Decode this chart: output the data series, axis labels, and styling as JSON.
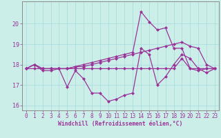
{
  "title": "",
  "xlabel": "Windchill (Refroidissement éolien,°C)",
  "ylabel": "",
  "bg_color": "#cceee8",
  "grid_color": "#aadddd",
  "line_color": "#993399",
  "spine_color": "#888888",
  "xlim": [
    -0.5,
    23.5
  ],
  "ylim": [
    15.75,
    21.1
  ],
  "xticks": [
    0,
    1,
    2,
    3,
    4,
    5,
    6,
    7,
    8,
    9,
    10,
    11,
    12,
    13,
    14,
    15,
    16,
    17,
    18,
    19,
    20,
    21,
    22,
    23
  ],
  "yticks": [
    16,
    17,
    18,
    19,
    20
  ],
  "series": [
    [
      17.8,
      18.0,
      17.7,
      17.7,
      17.8,
      16.9,
      17.7,
      17.3,
      16.6,
      16.6,
      16.2,
      16.3,
      16.5,
      16.6,
      18.8,
      18.5,
      17.0,
      17.4,
      18.0,
      18.5,
      18.3,
      17.8,
      17.6,
      17.8
    ],
    [
      17.8,
      18.0,
      17.8,
      17.8,
      17.8,
      17.8,
      17.9,
      17.9,
      18.0,
      18.1,
      18.2,
      18.3,
      18.4,
      18.5,
      18.6,
      18.7,
      18.8,
      18.9,
      19.0,
      19.1,
      18.9,
      18.8,
      18.0,
      17.8
    ],
    [
      17.8,
      17.8,
      17.8,
      17.8,
      17.8,
      17.8,
      17.8,
      17.8,
      17.8,
      17.8,
      17.8,
      17.8,
      17.8,
      17.8,
      17.8,
      17.8,
      17.8,
      17.8,
      17.8,
      18.3,
      17.8,
      17.8,
      17.8,
      17.8
    ],
    [
      17.8,
      18.0,
      17.8,
      17.8,
      17.8,
      17.8,
      17.9,
      18.0,
      18.1,
      18.2,
      18.3,
      18.4,
      18.5,
      18.6,
      20.6,
      20.1,
      19.7,
      19.8,
      18.8,
      18.8,
      17.8,
      17.7,
      17.8,
      17.8
    ]
  ],
  "marker": "D",
  "markersize": 2.0,
  "linewidth": 0.9,
  "tick_fontsize": 5.5,
  "xlabel_fontsize": 5.8
}
